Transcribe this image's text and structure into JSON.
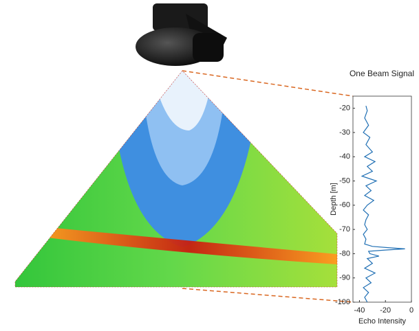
{
  "chart_data": {
    "type": "line",
    "title": "One Beam Signal",
    "x_label": "Echo Intensity",
    "y_label": "Depth [m]",
    "xlim": [
      -45,
      0
    ],
    "xticks": [
      -40,
      -20,
      0
    ],
    "ylim": [
      -100,
      -15
    ],
    "yticks": [
      -20,
      -30,
      -40,
      -50,
      -60,
      -70,
      -80,
      -90,
      -100
    ],
    "series": [
      {
        "color": "#1f6fb4",
        "y": [
          -19,
          -21,
          -24,
          -27,
          -30,
          -32,
          -35,
          -38,
          -40,
          -42,
          -44,
          -46,
          -48,
          -50,
          -52,
          -54,
          -56,
          -58,
          -60,
          -62,
          -64,
          -66,
          -68,
          -70,
          -72,
          -74,
          -76,
          -77,
          -77.5,
          -78,
          -78.5,
          -79,
          -80,
          -81,
          -82,
          -84,
          -86,
          -88,
          -90,
          -92,
          -94,
          -96,
          -98,
          -100
        ],
        "x": [
          -35,
          -34,
          -36,
          -33,
          -37,
          -32,
          -35,
          -30,
          -36,
          -28,
          -34,
          -30,
          -38,
          -27,
          -35,
          -31,
          -36,
          -29,
          -34,
          -37,
          -33,
          -35,
          -36,
          -34,
          -37,
          -35,
          -36,
          -30,
          -18,
          -5,
          -20,
          -33,
          -32,
          -25,
          -34,
          -30,
          -36,
          -28,
          -35,
          -31,
          -37,
          -33,
          -36,
          -34
        ]
      }
    ]
  }
}
